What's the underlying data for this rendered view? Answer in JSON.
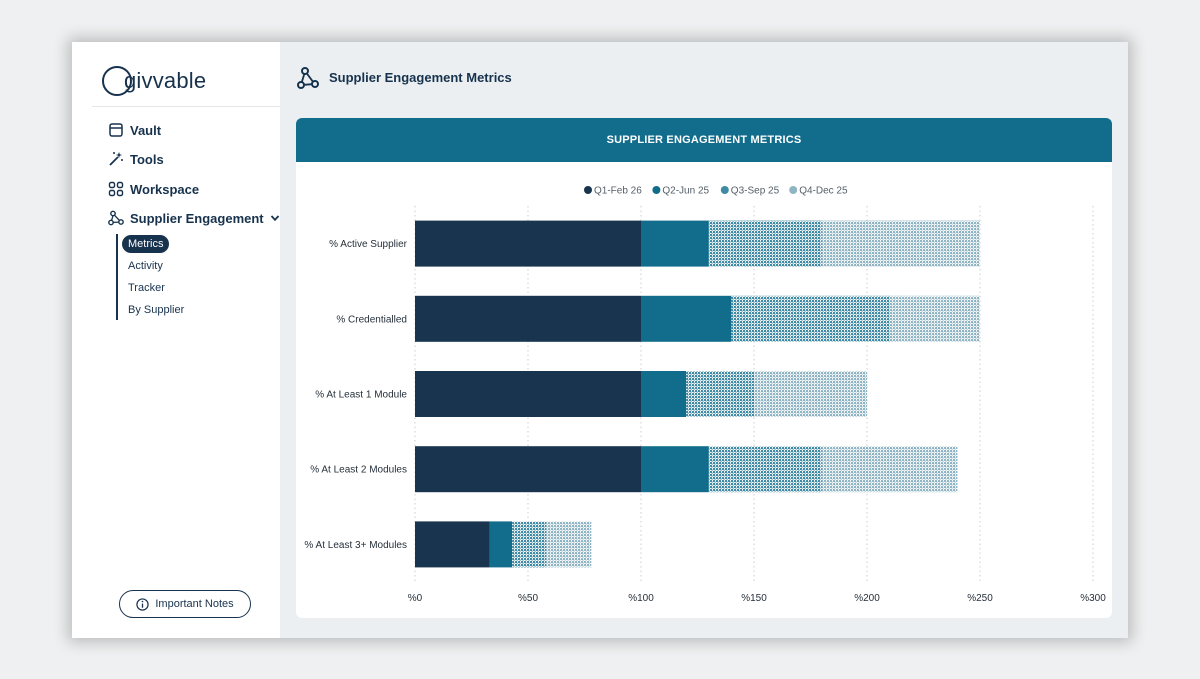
{
  "app": {
    "logo_text": "givvable"
  },
  "sidebar": {
    "items": [
      {
        "label": "Vault",
        "icon": "vault-icon"
      },
      {
        "label": "Tools",
        "icon": "magic-wand-icon"
      },
      {
        "label": "Workspace",
        "icon": "grid-icon"
      },
      {
        "label": "Supplier Engagement",
        "icon": "network-icon"
      }
    ],
    "sub_items": [
      {
        "label": "Metrics",
        "active": true
      },
      {
        "label": "Activity",
        "active": false
      },
      {
        "label": "Tracker",
        "active": false
      },
      {
        "label": "By Supplier",
        "active": false
      }
    ],
    "notes_button": "Important Notes"
  },
  "header": {
    "title": "Supplier Engagement Metrics",
    "icon": "network-icon"
  },
  "colors": {
    "accent": "#126d8c",
    "navy": "#17324d"
  },
  "chart_data": {
    "type": "bar",
    "orientation": "horizontal",
    "stacked": true,
    "title": "SUPPLIER ENGAGEMENT METRICS",
    "categories": [
      "% Active Supplier",
      "% Credentialled",
      "% At Least 1 Module",
      "% At Least 2 Modules",
      "% At Least 3+ Modules"
    ],
    "series": [
      {
        "name": "Q1-Feb 26",
        "color": "#18344f",
        "pattern": "solid",
        "values": [
          100,
          100,
          100,
          100,
          33
        ]
      },
      {
        "name": "Q2-Jun 25",
        "color": "#126d8c",
        "pattern": "solid",
        "values": [
          30,
          40,
          20,
          30,
          10
        ]
      },
      {
        "name": "Q3-Sep 25",
        "color": "#3f8aa4",
        "pattern": "dotted",
        "values": [
          50,
          70,
          30,
          50,
          15
        ]
      },
      {
        "name": "Q4-Dec 25",
        "color": "#8fb4c4",
        "pattern": "dotted",
        "values": [
          70,
          40,
          50,
          60,
          20
        ]
      }
    ],
    "xlim": [
      0,
      300
    ],
    "xticks": [
      "%0",
      "%50",
      "%100",
      "%150",
      "%200",
      "%250",
      "%300"
    ],
    "grid": "vertical-dotted",
    "legend_position": "top-center"
  }
}
